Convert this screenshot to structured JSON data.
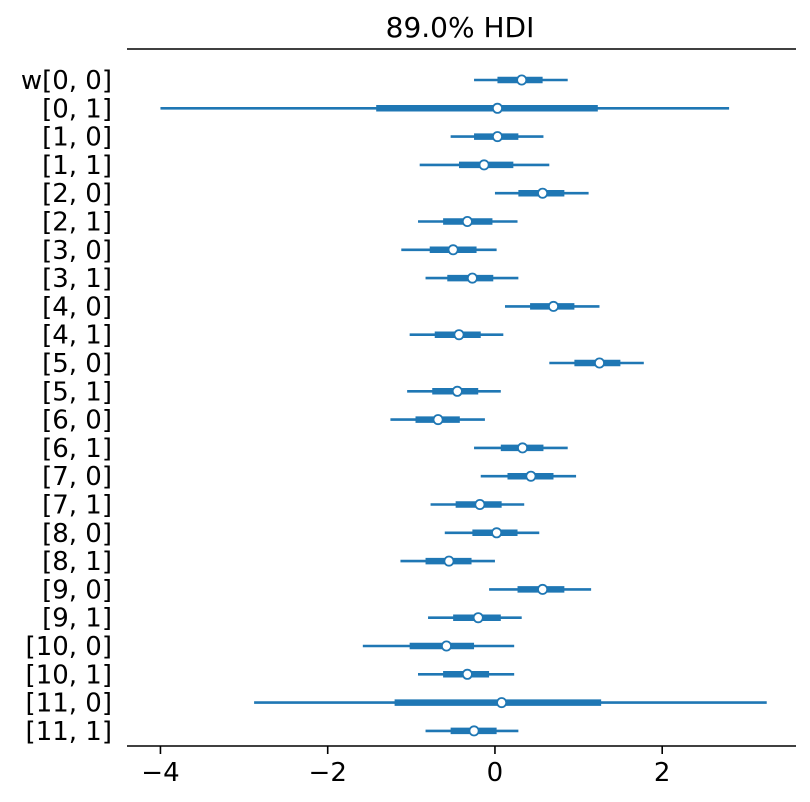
{
  "chart_data": {
    "type": "forest",
    "title": "89.0% HDI",
    "xlabel": "",
    "ylabel": "",
    "xlim": [
      -4.4,
      3.6
    ],
    "xticks": [
      -4,
      -2,
      0,
      2
    ],
    "xtick_labels": [
      "−4",
      "−2",
      "0",
      "2"
    ],
    "color": "#1f77b4",
    "grid": false,
    "rows": [
      {
        "label": "w[0, 0]",
        "lo": -0.25,
        "q1": 0.03,
        "median": 0.32,
        "q3": 0.57,
        "hi": 0.87
      },
      {
        "label": "[0, 1]",
        "lo": -4.0,
        "q1": -1.42,
        "median": 0.03,
        "q3": 1.23,
        "hi": 2.8
      },
      {
        "label": "[1, 0]",
        "lo": -0.53,
        "q1": -0.25,
        "median": 0.03,
        "q3": 0.28,
        "hi": 0.58
      },
      {
        "label": "[1, 1]",
        "lo": -0.9,
        "q1": -0.43,
        "median": -0.13,
        "q3": 0.22,
        "hi": 0.65
      },
      {
        "label": "[2, 0]",
        "lo": 0.0,
        "q1": 0.28,
        "median": 0.57,
        "q3": 0.83,
        "hi": 1.12
      },
      {
        "label": "[2, 1]",
        "lo": -0.92,
        "q1": -0.62,
        "median": -0.33,
        "q3": -0.03,
        "hi": 0.27
      },
      {
        "label": "[3, 0]",
        "lo": -1.12,
        "q1": -0.78,
        "median": -0.5,
        "q3": -0.22,
        "hi": 0.02
      },
      {
        "label": "[3, 1]",
        "lo": -0.83,
        "q1": -0.57,
        "median": -0.27,
        "q3": -0.02,
        "hi": 0.28
      },
      {
        "label": "[4, 0]",
        "lo": 0.12,
        "q1": 0.42,
        "median": 0.7,
        "q3": 0.95,
        "hi": 1.25
      },
      {
        "label": "[4, 1]",
        "lo": -1.02,
        "q1": -0.72,
        "median": -0.43,
        "q3": -0.17,
        "hi": 0.1
      },
      {
        "label": "[5, 0]",
        "lo": 0.65,
        "q1": 0.95,
        "median": 1.25,
        "q3": 1.5,
        "hi": 1.78
      },
      {
        "label": "[5, 1]",
        "lo": -1.05,
        "q1": -0.75,
        "median": -0.45,
        "q3": -0.2,
        "hi": 0.07
      },
      {
        "label": "[6, 0]",
        "lo": -1.25,
        "q1": -0.95,
        "median": -0.68,
        "q3": -0.42,
        "hi": -0.12
      },
      {
        "label": "[6, 1]",
        "lo": -0.25,
        "q1": 0.07,
        "median": 0.33,
        "q3": 0.58,
        "hi": 0.87
      },
      {
        "label": "[7, 0]",
        "lo": -0.17,
        "q1": 0.15,
        "median": 0.43,
        "q3": 0.7,
        "hi": 0.97
      },
      {
        "label": "[7, 1]",
        "lo": -0.77,
        "q1": -0.47,
        "median": -0.18,
        "q3": 0.08,
        "hi": 0.35
      },
      {
        "label": "[8, 0]",
        "lo": -0.6,
        "q1": -0.27,
        "median": 0.02,
        "q3": 0.27,
        "hi": 0.53
      },
      {
        "label": "[8, 1]",
        "lo": -1.13,
        "q1": -0.83,
        "median": -0.55,
        "q3": -0.28,
        "hi": 0.0
      },
      {
        "label": "[9, 0]",
        "lo": -0.07,
        "q1": 0.27,
        "median": 0.57,
        "q3": 0.83,
        "hi": 1.15
      },
      {
        "label": "[9, 1]",
        "lo": -0.8,
        "q1": -0.5,
        "median": -0.2,
        "q3": 0.07,
        "hi": 0.32
      },
      {
        "label": "[10, 0]",
        "lo": -1.58,
        "q1": -1.02,
        "median": -0.58,
        "q3": -0.25,
        "hi": 0.23
      },
      {
        "label": "[10, 1]",
        "lo": -0.92,
        "q1": -0.62,
        "median": -0.33,
        "q3": -0.07,
        "hi": 0.23
      },
      {
        "label": "[11, 0]",
        "lo": -2.88,
        "q1": -1.2,
        "median": 0.08,
        "q3": 1.27,
        "hi": 3.25
      },
      {
        "label": "[11, 1]",
        "lo": -0.83,
        "q1": -0.53,
        "median": -0.25,
        "q3": 0.02,
        "hi": 0.28
      }
    ]
  }
}
